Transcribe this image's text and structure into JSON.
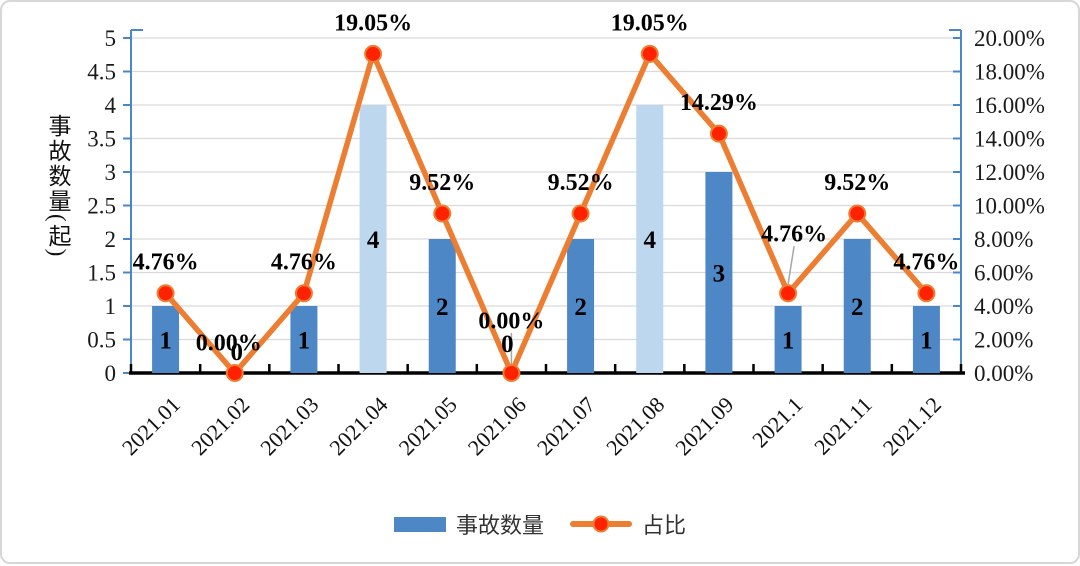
{
  "figure": {
    "kind": "combo bar-line chart, monthly accident count and share for 2021"
  },
  "chart_data": {
    "type": "combo-bar-line",
    "categories": [
      "2021.01",
      "2021.02",
      "2021.03",
      "2021.04",
      "2021.05",
      "2021.06",
      "2021.07",
      "2021.08",
      "2021.09",
      "2021.1",
      "2021.11",
      "2021.12"
    ],
    "series": [
      {
        "name": "事故数量",
        "type": "bar",
        "axis": "left",
        "values": [
          1,
          0,
          1,
          4,
          2,
          0,
          2,
          4,
          3,
          1,
          2,
          1
        ],
        "data_labels": [
          "1",
          "0",
          "1",
          "4",
          "2",
          "0",
          "2",
          "4",
          "3",
          "1",
          "2",
          "1"
        ],
        "color": "#4e87c6",
        "highlight_color": "#bdd7ee",
        "highlight_indices": [
          3,
          7
        ]
      },
      {
        "name": "占比",
        "type": "line",
        "axis": "right",
        "values": [
          4.76,
          0,
          4.76,
          19.05,
          9.52,
          0,
          9.52,
          19.05,
          14.29,
          4.76,
          9.52,
          4.76
        ],
        "data_labels": [
          "4.76%",
          "0.00%",
          "4.76%",
          "19.05%",
          "9.52%",
          "0.00%",
          "9.52%",
          "19.05%",
          "14.29%",
          "4.76%",
          "9.52%",
          "4.76%"
        ],
        "color": "#ed7d31",
        "marker_color": "#ff2200"
      }
    ],
    "left_axis": {
      "title": "事故数量(起)",
      "min": 0,
      "max": 5,
      "step": 0.5,
      "tick_labels": [
        "5",
        "4.5",
        "4",
        "3.5",
        "3",
        "2.5",
        "2",
        "1.5",
        "1",
        "0.5",
        "0"
      ]
    },
    "right_axis": {
      "min": 0,
      "max": 20,
      "step": 2,
      "tick_labels": [
        "20.00%",
        "18.00%",
        "16.00%",
        "14.00%",
        "12.00%",
        "10.00%",
        "8.00%",
        "6.00%",
        "4.00%",
        "2.00%",
        "0.00%"
      ]
    },
    "grid": true,
    "legend_position": "bottom",
    "annotation_layout": {
      "line_label_offsets": {
        "default": [
          0,
          -32
        ],
        "1": [
          -6,
          -31
        ],
        "5": [
          0,
          -53
        ],
        "9": [
          6,
          -60
        ]
      },
      "bar_zero_label_offsets": {
        "1": [
          2,
          -22
        ],
        "5": [
          -4,
          -30
        ]
      },
      "leader_line_indices": [
        5,
        9
      ],
      "leader_color": "#a6a6a6"
    },
    "colors": {
      "axis_line": "#4a86c8",
      "grid_line": "#d9d9d9",
      "baseline": "#000000",
      "text": "#000000"
    }
  }
}
